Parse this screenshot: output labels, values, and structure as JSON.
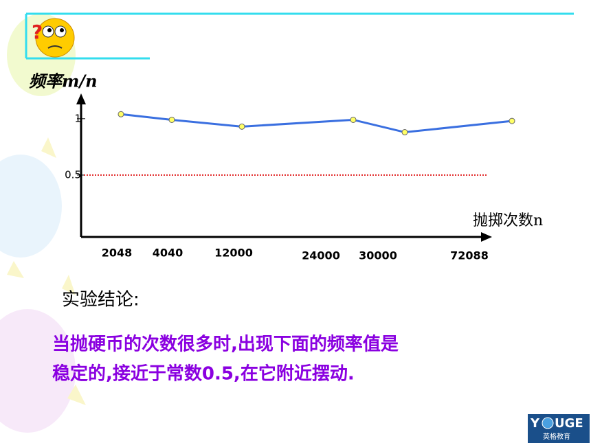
{
  "chart_data": {
    "type": "line",
    "y_label": "频率m/n",
    "x_label": "抛掷次数n",
    "categories": [
      "2048",
      "4040",
      "12000",
      "24000",
      "30000",
      "72088"
    ],
    "values": [
      1.04,
      0.99,
      0.93,
      0.99,
      0.88,
      0.98
    ],
    "ylim": [
      0,
      1.2
    ],
    "yticks": [
      0.5,
      1
    ],
    "color": "#3a6fe0",
    "point_color": "#ffff66"
  },
  "conclusion": {
    "title": "实验结论:",
    "lines": [
      "当抛硬币的次数很多时,出现下面的频率值是",
      "稳定的,接近于常数0.5,在它附近摆动."
    ]
  },
  "logo": {
    "parts": [
      "Y",
      "UGE"
    ],
    "subtitle": "英格教育"
  }
}
